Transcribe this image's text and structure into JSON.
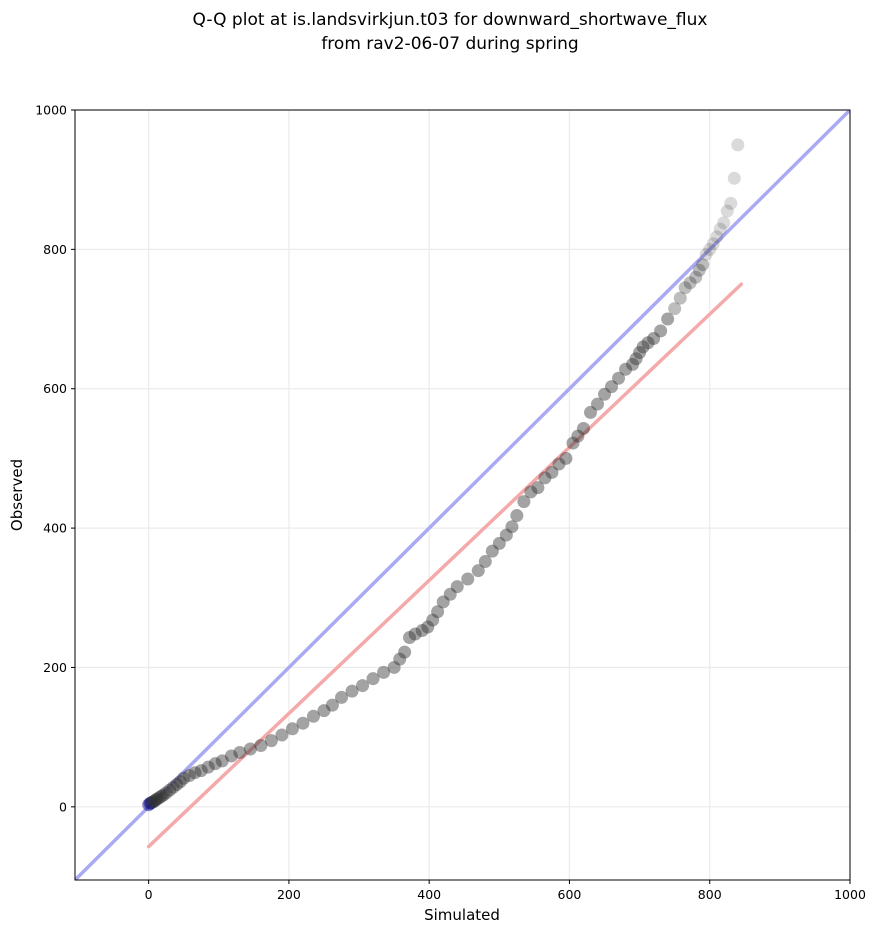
{
  "chart_data": {
    "type": "scatter",
    "title": "Q-Q plot at is.landsvirkjun.t03 for downward_shortwave_flux",
    "subtitle": "from rav2-06-07 during spring",
    "xlabel": "Simulated",
    "ylabel": "Observed",
    "xlim": [
      -105,
      1000
    ],
    "ylim": [
      -105,
      1000
    ],
    "xticks": [
      0,
      200,
      400,
      600,
      800,
      1000
    ],
    "yticks": [
      0,
      200,
      400,
      600,
      800,
      1000
    ],
    "grid": true,
    "colors": {
      "points": "#333333",
      "identity_line": "#aaaaf4",
      "fit_line": "#f4aaaa",
      "origin_points": "#000080"
    },
    "series": [
      {
        "type": "points",
        "x": [
          0,
          2,
          4,
          6,
          8,
          10,
          12,
          15,
          18,
          21,
          25,
          30,
          35,
          40,
          45,
          50,
          58,
          66,
          75,
          85,
          95,
          105,
          118,
          130,
          145,
          160,
          175,
          190,
          205,
          220,
          235,
          250,
          262,
          275,
          290,
          305,
          320,
          335,
          350,
          358,
          365,
          372,
          380,
          390,
          398,
          405,
          412,
          420,
          430,
          440,
          455,
          470,
          480,
          490,
          500,
          510,
          518,
          525,
          535,
          545,
          555,
          565,
          575,
          585,
          595,
          605,
          612,
          620,
          630,
          640,
          650,
          660,
          670,
          680,
          690,
          695,
          700,
          705,
          712,
          720,
          730,
          740,
          750,
          758,
          765,
          772,
          780,
          785,
          790,
          795,
          800,
          805,
          810,
          815,
          820,
          825,
          830,
          835,
          840
        ],
        "y": [
          3,
          5,
          6,
          7,
          8,
          10,
          11,
          13,
          15,
          17,
          20,
          24,
          28,
          32,
          36,
          41,
          45,
          49,
          52,
          57,
          62,
          66,
          73,
          78,
          83,
          88,
          95,
          103,
          112,
          120,
          130,
          138,
          146,
          157,
          166,
          174,
          184,
          193,
          200,
          212,
          222,
          243,
          248,
          253,
          258,
          268,
          280,
          294,
          305,
          316,
          327,
          339,
          352,
          367,
          378,
          390,
          402,
          418,
          438,
          452,
          458,
          472,
          480,
          492,
          500,
          522,
          532,
          543,
          566,
          578,
          592,
          603,
          615,
          628,
          635,
          643,
          652,
          660,
          666,
          672,
          683,
          700,
          715,
          730,
          745,
          752,
          760,
          770,
          778,
          793,
          800,
          808,
          818,
          829,
          838,
          855,
          866,
          902,
          950
        ]
      },
      {
        "type": "line",
        "name": "",
        "x": [
          -105,
          1000
        ],
        "y": [
          -105,
          1000
        ]
      },
      {
        "type": "line",
        "name": "",
        "x": [
          0,
          845
        ],
        "y": [
          -57,
          750
        ]
      }
    ]
  }
}
